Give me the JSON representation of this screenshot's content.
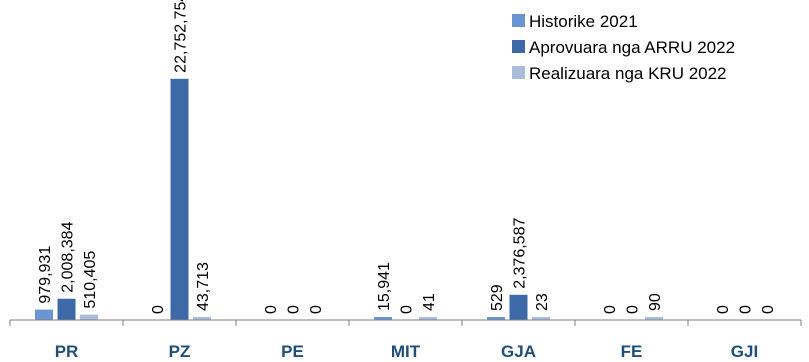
{
  "chart_data": {
    "type": "bar",
    "categories": [
      "PR",
      "PZ",
      "PE",
      "MIT",
      "GJA",
      "FE",
      "GJI"
    ],
    "series": [
      {
        "name": "Historike 2021",
        "color": "#6b95d0",
        "values": [
          979931,
          0,
          0,
          15941,
          529,
          0,
          0
        ],
        "labels": [
          "979,931",
          "0",
          "0",
          "15,941",
          "529",
          "0",
          "0"
        ]
      },
      {
        "name": "Aprovuara nga ARRU 2022",
        "color": "#3d69a6",
        "values": [
          2008384,
          22752754,
          0,
          0,
          2376587,
          0,
          0
        ],
        "labels": [
          "2,008,384",
          "22,752,754",
          "0",
          "0",
          "2,376,587",
          "0",
          "0"
        ]
      },
      {
        "name": "Realizuara nga KRU 2022",
        "color": "#a9bddb",
        "values": [
          510405,
          43713,
          0,
          41,
          23,
          90,
          0
        ],
        "labels": [
          "510,405",
          "43,713",
          "0",
          "41",
          "23",
          "90",
          "0"
        ]
      }
    ],
    "ylim": [
      0,
      25000000
    ],
    "grid": false,
    "legend": "top-right"
  }
}
